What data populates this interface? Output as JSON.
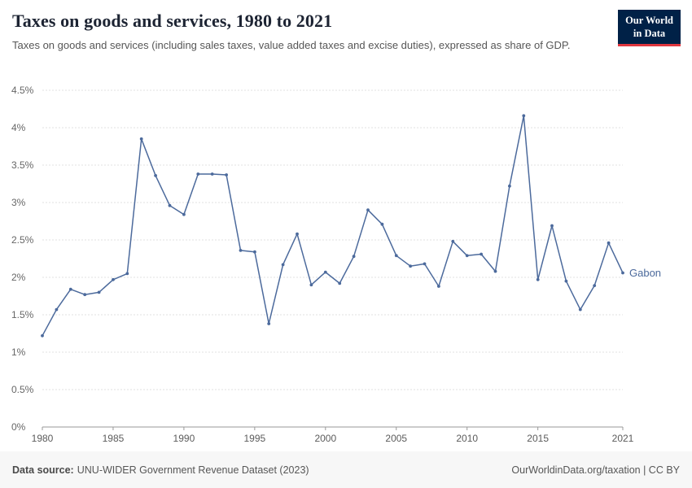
{
  "header": {
    "title": "Taxes on goods and services, 1980 to 2021",
    "subtitle": "Taxes on goods and services (including sales taxes, value added taxes and excise duties), expressed as share of GDP.",
    "logo_line1": "Our World",
    "logo_line2": "in Data"
  },
  "chart_data": {
    "type": "line",
    "title": "Taxes on goods and services, 1980 to 2021",
    "xlabel": "",
    "ylabel": "",
    "xlim": [
      1980,
      2021
    ],
    "ylim": [
      0,
      4.5
    ],
    "grid": true,
    "legend_position": "end-of-line-label",
    "xticks": [
      1980,
      1985,
      1990,
      1995,
      2000,
      2005,
      2010,
      2015,
      2021
    ],
    "yticks": [
      0,
      0.5,
      1,
      1.5,
      2,
      2.5,
      3,
      3.5,
      4,
      4.5
    ],
    "ytick_labels": [
      "0%",
      "0.5%",
      "1%",
      "1.5%",
      "2%",
      "2.5%",
      "3%",
      "3.5%",
      "4%",
      "4.5%"
    ],
    "series": [
      {
        "name": "Gabon",
        "color": "#4C6A9C",
        "x": [
          1980,
          1981,
          1982,
          1983,
          1984,
          1985,
          1986,
          1987,
          1988,
          1989,
          1990,
          1991,
          1992,
          1993,
          1994,
          1995,
          1996,
          1997,
          1998,
          1999,
          2000,
          2001,
          2002,
          2003,
          2004,
          2005,
          2006,
          2007,
          2008,
          2009,
          2010,
          2011,
          2012,
          2013,
          2014,
          2015,
          2016,
          2017,
          2018,
          2019,
          2020,
          2021
        ],
        "values": [
          1.22,
          1.57,
          1.84,
          1.77,
          1.8,
          1.97,
          2.05,
          3.85,
          3.36,
          2.96,
          2.84,
          3.38,
          3.38,
          3.37,
          2.36,
          2.34,
          1.38,
          2.17,
          2.58,
          1.9,
          2.07,
          1.92,
          2.28,
          2.9,
          2.71,
          2.29,
          2.15,
          2.18,
          1.88,
          2.48,
          2.29,
          2.31,
          2.08,
          3.22,
          4.16,
          1.97,
          2.69,
          1.95,
          1.57,
          1.89,
          2.46,
          2.06
        ]
      }
    ]
  },
  "footer": {
    "source_label": "Data source:",
    "source_text": "UNU-WIDER Government Revenue Dataset (2023)",
    "attribution": "OurWorldinData.org/taxation | CC BY"
  },
  "colors": {
    "line": "#4C6A9C",
    "logo_bg": "#002147",
    "logo_accent": "#e0373f",
    "grid": "#e2e2e2"
  }
}
